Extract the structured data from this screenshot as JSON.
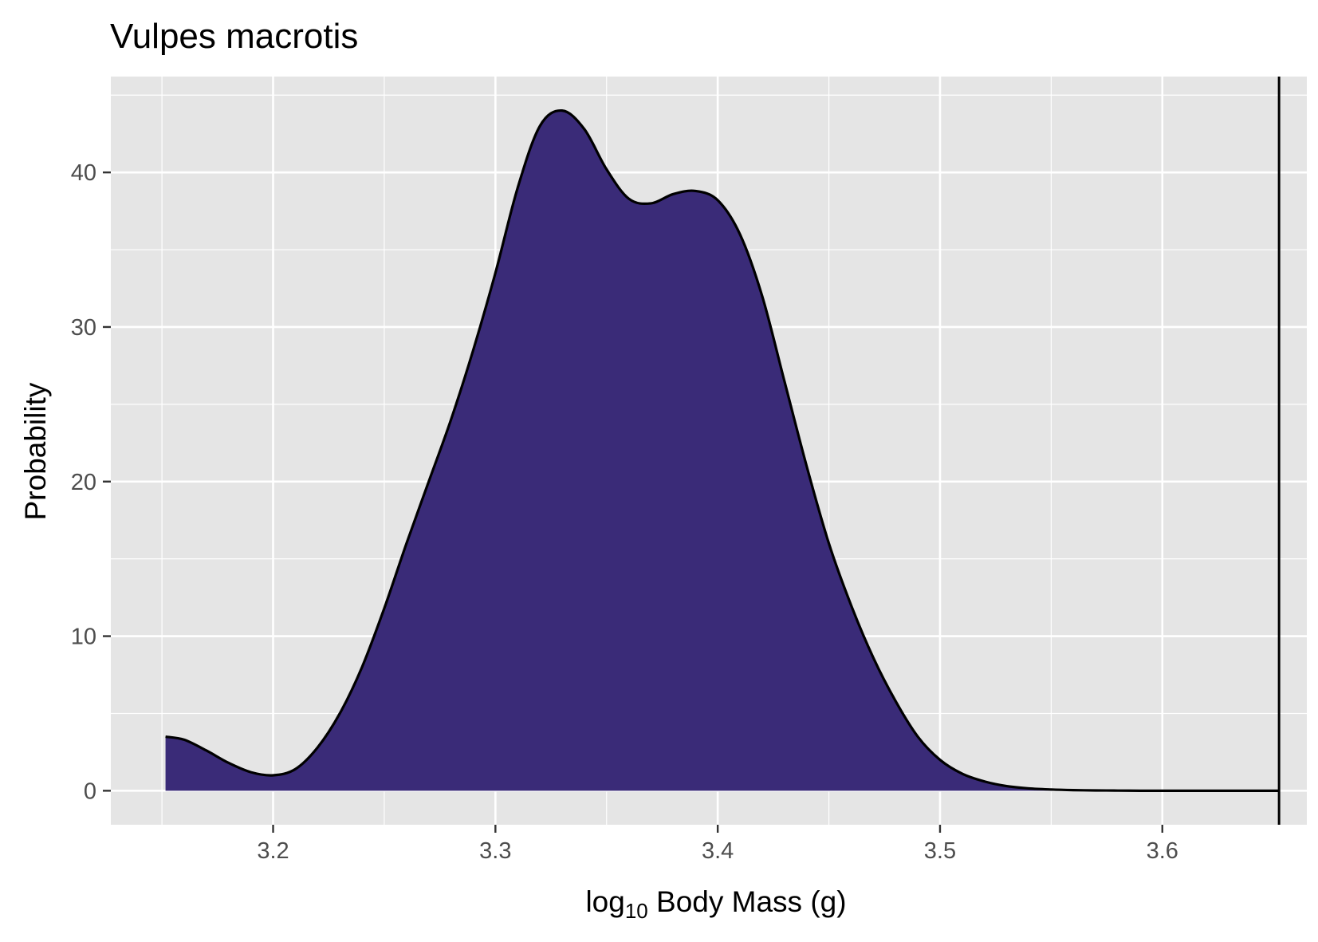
{
  "chart_data": {
    "type": "area",
    "title": "Vulpes macrotis",
    "xlabel": {
      "base": "log",
      "subscript": "10",
      "rest": " Body Mass (g)"
    },
    "ylabel": "Probability",
    "xlim": [
      3.127,
      3.665
    ],
    "ylim": [
      -2.2,
      46.2
    ],
    "x_ticks": [
      {
        "value": 3.2,
        "label": "3.2"
      },
      {
        "value": 3.3,
        "label": "3.3"
      },
      {
        "value": 3.4,
        "label": "3.4"
      },
      {
        "value": 3.5,
        "label": "3.5"
      },
      {
        "value": 3.6,
        "label": "3.6"
      }
    ],
    "x_minor": [
      3.15,
      3.25,
      3.35,
      3.45,
      3.55
    ],
    "y_ticks": [
      {
        "value": 0,
        "label": "0"
      },
      {
        "value": 10,
        "label": "10"
      },
      {
        "value": 20,
        "label": "20"
      },
      {
        "value": 30,
        "label": "30"
      },
      {
        "value": 40,
        "label": "40"
      }
    ],
    "y_minor": [
      5,
      15,
      25,
      35,
      45
    ],
    "grid": true,
    "legend": "none",
    "fill_color": "#3a2b78",
    "line_color": "#000000",
    "panel_color": "#e5e5e5",
    "grid_color": "#ffffff",
    "vline": 3.6525,
    "series": [
      {
        "x": [
          3.1516,
          3.16,
          3.17,
          3.18,
          3.19,
          3.2,
          3.21,
          3.22,
          3.23,
          3.24,
          3.25,
          3.26,
          3.27,
          3.28,
          3.29,
          3.3,
          3.31,
          3.32,
          3.33,
          3.34,
          3.35,
          3.36,
          3.37,
          3.38,
          3.39,
          3.4,
          3.41,
          3.42,
          3.43,
          3.44,
          3.45,
          3.46,
          3.47,
          3.48,
          3.49,
          3.5,
          3.51,
          3.52,
          3.53,
          3.54,
          3.55,
          3.56,
          3.57,
          3.58,
          3.59,
          3.6,
          3.61,
          3.62,
          3.63,
          3.64,
          3.6525
        ],
        "y": [
          3.5,
          3.3,
          2.6,
          1.8,
          1.2,
          1.0,
          1.4,
          2.8,
          5.0,
          8.0,
          11.8,
          16.0,
          20.0,
          24.0,
          28.5,
          33.5,
          39.0,
          43.0,
          44.0,
          42.8,
          40.2,
          38.3,
          38.0,
          38.6,
          38.8,
          38.2,
          36.0,
          32.0,
          26.5,
          21.0,
          16.0,
          12.0,
          8.6,
          5.8,
          3.5,
          2.0,
          1.1,
          0.6,
          0.3,
          0.15,
          0.08,
          0.04,
          0.02,
          0.01,
          0.0,
          0.0,
          0.0,
          0.0,
          0.0,
          0.0,
          0.0
        ]
      }
    ]
  }
}
